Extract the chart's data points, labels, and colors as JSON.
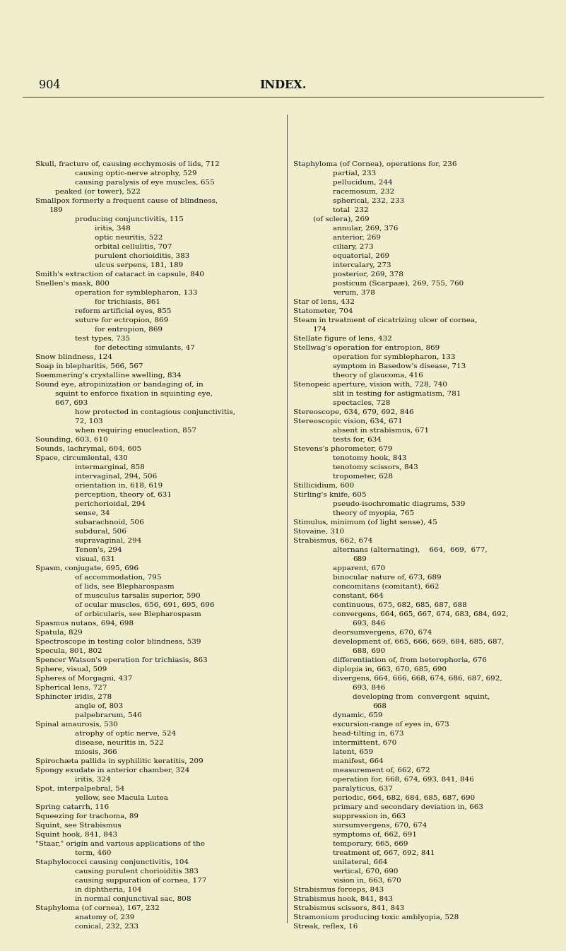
{
  "background_color": "#f0eecc",
  "page_number": "904",
  "title": "INDEX.",
  "text_color": "#111111",
  "font_size": 7.5,
  "header_font_size": 11.5,
  "left_col": [
    [
      "Skull, fracture of, causing ecchymosis of lids, 712",
      0
    ],
    [
      "causing optic-nerve atrophy, 529",
      2
    ],
    [
      "causing paralysis of eye muscles, 655",
      2
    ],
    [
      "peaked (or tower), 522",
      1
    ],
    [
      "Smallpox formerly a frequent cause of blindness,",
      0
    ],
    [
      "189",
      0.7
    ],
    [
      "producing conjunctivitis, 115",
      2
    ],
    [
      "iritis, 348",
      3
    ],
    [
      "optic neuritis, 522",
      3
    ],
    [
      "orbital cellulitis, 707",
      3
    ],
    [
      "purulent chorioiditis, 383",
      3
    ],
    [
      "ulcus serpens, 181, 189",
      3
    ],
    [
      "Smith's extraction of cataract in capsule, 840",
      0
    ],
    [
      "Snellen's mask, 800",
      0
    ],
    [
      "operation for symblepharon, 133",
      2
    ],
    [
      "for trichiasis, 861",
      3
    ],
    [
      "reform artificial eyes, 855",
      2
    ],
    [
      "suture for ectropion, 869",
      2
    ],
    [
      "for entropion, 869",
      3
    ],
    [
      "test types, 735",
      2
    ],
    [
      "for detecting simulants, 47",
      3
    ],
    [
      "Snow blindness, 124",
      0
    ],
    [
      "Soap in blepharitis, 566, 567",
      0
    ],
    [
      "Soemmering's crystalline swelling, 834",
      0
    ],
    [
      "Sound eye, atropinization or bandaging of, in",
      0
    ],
    [
      "squint to enforce fixation in squinting eye,",
      1
    ],
    [
      "667, 693",
      1
    ],
    [
      "how protected in contagious conjunctivitis,",
      2
    ],
    [
      "72, 103",
      2
    ],
    [
      "when requiring enucleation, 857",
      2
    ],
    [
      "Sounding, 603, 610",
      0
    ],
    [
      "Sounds, lachrymal, 604, 605",
      0
    ],
    [
      "Space, circumlental, 430",
      0
    ],
    [
      "intermarginal, 858",
      2
    ],
    [
      "intervaginal, 294, 506",
      2
    ],
    [
      "orientation in, 618, 619",
      2
    ],
    [
      "perception, theory of, 631",
      2
    ],
    [
      "perichorioidal, 294",
      2
    ],
    [
      "sense, 34",
      2
    ],
    [
      "subarachnoid, 506",
      2
    ],
    [
      "subdural, 506",
      2
    ],
    [
      "supravaginal, 294",
      2
    ],
    [
      "Tenon's, 294",
      2
    ],
    [
      "visual, 631",
      2
    ],
    [
      "Spasm, conjugate, 695, 696",
      0
    ],
    [
      "of accommodation, 795",
      2
    ],
    [
      "of lids, see Blepharospasm",
      2
    ],
    [
      "of musculus tarsalis superior, 590",
      2
    ],
    [
      "of ocular muscles, 656, 691, 695, 696",
      2
    ],
    [
      "of orbicularis, see Blepharospasm",
      2
    ],
    [
      "Spasmus nutans, 694, 698",
      0
    ],
    [
      "Spatula, 829",
      0
    ],
    [
      "Spectroscope in testing color blindness, 539",
      0
    ],
    [
      "Specula, 801, 802",
      0
    ],
    [
      "Spencer Watson's operation for trichiasis, 863",
      0
    ],
    [
      "Sphere, visual, 509",
      0
    ],
    [
      "Spheres of Morgagni, 437",
      0
    ],
    [
      "Spherical lens, 727",
      0
    ],
    [
      "Sphincter iridis, 278",
      0
    ],
    [
      "angle of, 803",
      2
    ],
    [
      "palpebrarum, 546",
      2
    ],
    [
      "Spinal amaurosis, 530",
      0
    ],
    [
      "atrophy of optic nerve, 524",
      2
    ],
    [
      "disease, neuritis in, 522",
      2
    ],
    [
      "miosis, 366",
      2
    ],
    [
      "Spirochæta pallida in syphilitic keratitis, 209",
      0
    ],
    [
      "Spongy exudate in anterior chamber, 324",
      0
    ],
    [
      "iritis, 324",
      2
    ],
    [
      "Spot, interpalpebral, 54",
      0
    ],
    [
      "yellow, see Macula Lutea",
      2
    ],
    [
      "Spring catarrh, 116",
      0
    ],
    [
      "Squeezing for trachoma, 89",
      0
    ],
    [
      "Squint, see Strabismus",
      0
    ],
    [
      "Squint hook, 841, 843",
      0
    ],
    [
      "\"Staar,\" origin and various applications of the",
      0
    ],
    [
      "term, 460",
      2
    ],
    [
      "Staphylococci causing conjunctivitis, 104",
      0
    ],
    [
      "causing purulent chorioiditis 383",
      2
    ],
    [
      "causing suppuration of cornea, 177",
      2
    ],
    [
      "in diphtheria, 104",
      2
    ],
    [
      "in normal conjunctival sac, 808",
      2
    ],
    [
      "Staphyloma (of cornea), 167, 232",
      0
    ],
    [
      "anatomy of, 239",
      2
    ],
    [
      "conical, 232, 233",
      2
    ]
  ],
  "right_col": [
    [
      "Staphyloma (of Cornea), operations for, 236",
      0
    ],
    [
      "partial, 233",
      2
    ],
    [
      "pellucidum, 244",
      2
    ],
    [
      "racemosum, 232",
      2
    ],
    [
      "spherical, 232, 233",
      2
    ],
    [
      "total  232",
      2
    ],
    [
      "(of sclera), 269",
      1
    ],
    [
      "annular, 269, 376",
      2
    ],
    [
      "anterior, 269",
      2
    ],
    [
      "ciliary, 273",
      2
    ],
    [
      "equatorial, 269",
      2
    ],
    [
      "intercalary, 273",
      2
    ],
    [
      "posterior, 269, 378",
      2
    ],
    [
      "posticum (Scarpaæ), 269, 755, 760",
      2
    ],
    [
      "verum, 378",
      2
    ],
    [
      "Star of lens, 432",
      0
    ],
    [
      "Statometer, 704",
      0
    ],
    [
      "Steam in treatment of cicatrizing ulcer of cornea,",
      0
    ],
    [
      "174",
      1
    ],
    [
      "Stellate figure of lens, 432",
      0
    ],
    [
      "Stellwag's operation for entropion, 869",
      0
    ],
    [
      "operation for symblepharon, 133",
      2
    ],
    [
      "symptom in Basedow's disease, 713",
      2
    ],
    [
      "theory of glaucoma, 416",
      2
    ],
    [
      "Stenopeic aperture, vision with, 728, 740",
      0
    ],
    [
      "slit in testing for astigmatism, 781",
      2
    ],
    [
      "spectacles, 728",
      2
    ],
    [
      "Stereoscope, 634, 679, 692, 846",
      0
    ],
    [
      "Stereoscopic vision, 634, 671",
      0
    ],
    [
      "absent in strabismus, 671",
      2
    ],
    [
      "tests for, 634",
      2
    ],
    [
      "Stevens's phorometer, 679",
      0
    ],
    [
      "tenotomy hook, 843",
      2
    ],
    [
      "tenotomy scissors, 843",
      2
    ],
    [
      "tropometer, 628",
      2
    ],
    [
      "Stillicidium, 600",
      0
    ],
    [
      "Stirling's knife, 605",
      0
    ],
    [
      "pseudo-isochromatic diagrams, 539",
      2
    ],
    [
      "theory of myopia, 765",
      2
    ],
    [
      "Stimulus, minimum (of light sense), 45",
      0
    ],
    [
      "Stovaine, 310",
      0
    ],
    [
      "Strabismus, 662, 674",
      0
    ],
    [
      "alternans (alternating),    664,  669,  677,",
      2
    ],
    [
      "689",
      3
    ],
    [
      "apparent, 670",
      2
    ],
    [
      "binocular nature of, 673, 689",
      2
    ],
    [
      "concomitans (comitant), 662",
      2
    ],
    [
      "constant, 664",
      2
    ],
    [
      "continuous, 675, 682, 685, 687, 688",
      2
    ],
    [
      "convergens, 664, 665, 667, 674, 683, 684, 692,",
      2
    ],
    [
      "693, 846",
      3
    ],
    [
      "deorsumvergens, 670, 674",
      2
    ],
    [
      "development of, 665, 666, 669, 684, 685, 687,",
      2
    ],
    [
      "688, 690",
      3
    ],
    [
      "differentiation of, from heterophoria, 676",
      2
    ],
    [
      "diplopia in, 663, 670, 685, 690",
      2
    ],
    [
      "divergens, 664, 666, 668, 674, 686, 687, 692,",
      2
    ],
    [
      "693, 846",
      3
    ],
    [
      "developing from  convergent  squint,",
      3
    ],
    [
      "668",
      4
    ],
    [
      "dynamic, 659",
      2
    ],
    [
      "excursion-range of eyes in, 673",
      2
    ],
    [
      "head-tilting in, 673",
      2
    ],
    [
      "intermittent, 670",
      2
    ],
    [
      "latent, 659",
      2
    ],
    [
      "manifest, 664",
      2
    ],
    [
      "measurement of, 662, 672",
      2
    ],
    [
      "operation for, 668, 674, 693, 841, 846",
      2
    ],
    [
      "paralyticus, 637",
      2
    ],
    [
      "periodic, 664, 682, 684, 685, 687, 690",
      2
    ],
    [
      "primary and secondary deviation in, 663",
      2
    ],
    [
      "suppression in, 663",
      2
    ],
    [
      "sursumvergens, 670, 674",
      2
    ],
    [
      "symptoms of, 662, 691",
      2
    ],
    [
      "temporary, 665, 669",
      2
    ],
    [
      "treatment of, 667, 692, 841",
      2
    ],
    [
      "unilateral, 664",
      2
    ],
    [
      "vertical, 670, 690",
      2
    ],
    [
      "vision in, 663, 670",
      2
    ],
    [
      "Strabismus forceps, 843",
      0
    ],
    [
      "Strabismus hook, 841, 843",
      0
    ],
    [
      "Strabismus scissors, 841, 843",
      0
    ],
    [
      "Stramonium producing toxic amblyopia, 528",
      0
    ],
    [
      "Streak, reflex, 16",
      0
    ]
  ]
}
